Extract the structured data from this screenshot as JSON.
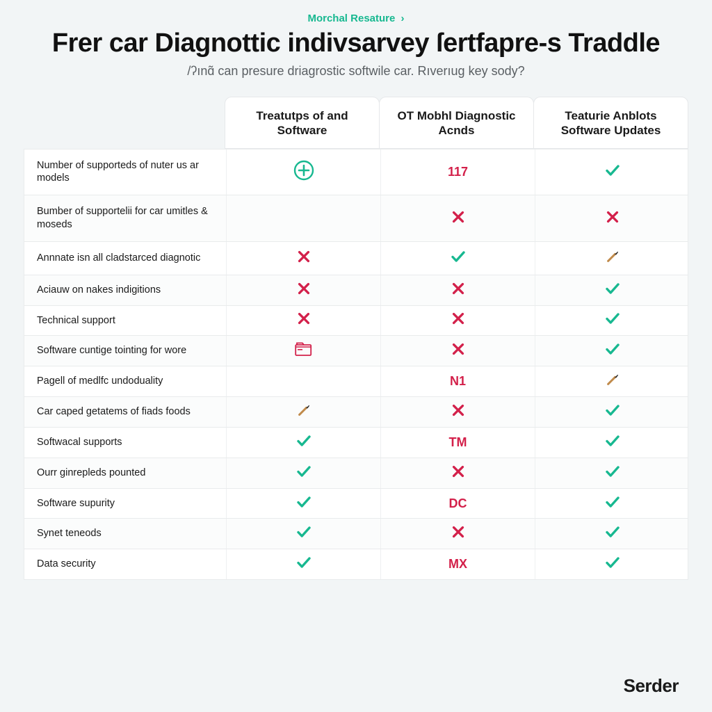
{
  "colors": {
    "page_bg": "#f2f5f6",
    "card_bg": "#ffffff",
    "border": "#e9ebec",
    "text_primary": "#1a1a1a",
    "text_muted": "#5a5f63",
    "accent_green": "#17b890",
    "accent_red": "#d3204a",
    "brush_handle": "#c08a4a",
    "brush_tip": "#2b2b2b"
  },
  "breadcrumb": {
    "label": "Morchal Resature",
    "chevron": "›"
  },
  "title": "Frer car Diagnottic indivsarvey ſertfapre-s Traddle",
  "subtitle": "/ʔınɑ̃ can presure driagrostic softwile car. Rıverıug key sody?",
  "columns": [
    "Treatutps of and Software",
    "OT Mobhl Diagnostic Acnds",
    "Teaturie Anblots Software Updates"
  ],
  "rows": [
    {
      "label": "Number of supporteds of nuter us ar models",
      "cells": [
        {
          "t": "icon",
          "v": "plus-circle",
          "c": "accent_green"
        },
        {
          "t": "text",
          "v": "117",
          "c": "accent_red"
        },
        {
          "t": "icon",
          "v": "check",
          "c": "accent_green"
        }
      ],
      "tall": true
    },
    {
      "label": "Bumber of supportelii for car umitles & moseds",
      "cells": [
        {
          "t": "blank"
        },
        {
          "t": "icon",
          "v": "cross",
          "c": "accent_red"
        },
        {
          "t": "icon",
          "v": "cross",
          "c": "accent_red"
        }
      ],
      "tall": true
    },
    {
      "label": "Annnate isn all cladstarced diagnotic",
      "cells": [
        {
          "t": "icon",
          "v": "cross",
          "c": "accent_red"
        },
        {
          "t": "icon",
          "v": "check",
          "c": "accent_green"
        },
        {
          "t": "icon",
          "v": "brush"
        }
      ],
      "tall": true
    },
    {
      "label": "Aciauw on nakes indigitions",
      "cells": [
        {
          "t": "icon",
          "v": "cross",
          "c": "accent_red"
        },
        {
          "t": "icon",
          "v": "cross",
          "c": "accent_red"
        },
        {
          "t": "icon",
          "v": "check",
          "c": "accent_green"
        }
      ]
    },
    {
      "label": "Technical support",
      "cells": [
        {
          "t": "icon",
          "v": "cross",
          "c": "accent_red"
        },
        {
          "t": "icon",
          "v": "cross",
          "c": "accent_red"
        },
        {
          "t": "icon",
          "v": "check",
          "c": "accent_green"
        }
      ]
    },
    {
      "label": "Software cuntige tointing for wore",
      "cells": [
        {
          "t": "icon",
          "v": "folder",
          "c": "accent_red"
        },
        {
          "t": "icon",
          "v": "cross",
          "c": "accent_red"
        },
        {
          "t": "icon",
          "v": "check",
          "c": "accent_green"
        }
      ]
    },
    {
      "label": "Pagell of medlfc undoduality",
      "cells": [
        {
          "t": "blank"
        },
        {
          "t": "text",
          "v": "N1",
          "c": "accent_red"
        },
        {
          "t": "icon",
          "v": "brush"
        }
      ]
    },
    {
      "label": "Car caped getatems of fiads foods",
      "cells": [
        {
          "t": "icon",
          "v": "brush"
        },
        {
          "t": "icon",
          "v": "cross",
          "c": "accent_red"
        },
        {
          "t": "icon",
          "v": "check",
          "c": "accent_green"
        }
      ]
    },
    {
      "label": "Softwacal supports",
      "cells": [
        {
          "t": "icon",
          "v": "check",
          "c": "accent_green"
        },
        {
          "t": "text",
          "v": "TM",
          "c": "accent_red"
        },
        {
          "t": "icon",
          "v": "check",
          "c": "accent_green"
        }
      ]
    },
    {
      "label": "Ourr ginrepleds pounted",
      "cells": [
        {
          "t": "icon",
          "v": "check",
          "c": "accent_green"
        },
        {
          "t": "icon",
          "v": "cross",
          "c": "accent_red"
        },
        {
          "t": "icon",
          "v": "check",
          "c": "accent_green"
        }
      ]
    },
    {
      "label": "Software supurity",
      "cells": [
        {
          "t": "icon",
          "v": "check",
          "c": "accent_green"
        },
        {
          "t": "text",
          "v": "DC",
          "c": "accent_red"
        },
        {
          "t": "icon",
          "v": "check",
          "c": "accent_green"
        }
      ]
    },
    {
      "label": "Synet teneods",
      "cells": [
        {
          "t": "icon",
          "v": "check",
          "c": "accent_green"
        },
        {
          "t": "icon",
          "v": "cross",
          "c": "accent_red"
        },
        {
          "t": "icon",
          "v": "check",
          "c": "accent_green"
        }
      ]
    },
    {
      "label": "Data security",
      "cells": [
        {
          "t": "icon",
          "v": "check",
          "c": "accent_green"
        },
        {
          "t": "text",
          "v": "MX",
          "c": "accent_red"
        },
        {
          "t": "icon",
          "v": "check",
          "c": "accent_green"
        }
      ]
    }
  ],
  "footer_brand": "Serder"
}
